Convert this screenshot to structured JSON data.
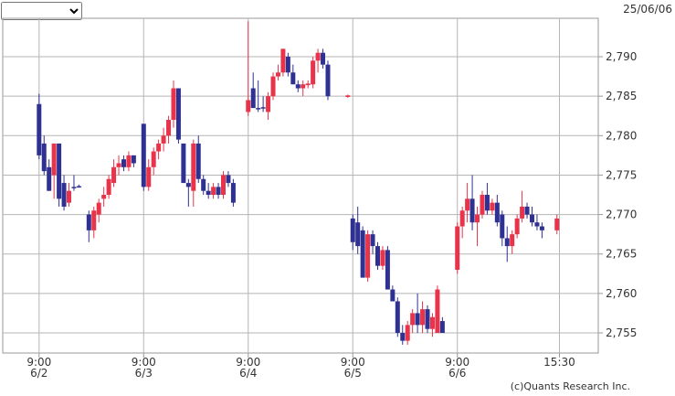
{
  "chart_data": {
    "type": "candlestick",
    "date": "25/06/06",
    "credit": "(c)Quants Research Inc.",
    "up_color": "#e8334a",
    "down_color": "#2e3192",
    "grid": true,
    "xlim": [
      -7.3,
      112.3
    ],
    "ylim": [
      2752.45,
      2794.87
    ],
    "xticks": [
      {
        "value": 0,
        "label": [
          "9:00",
          "6/2"
        ]
      },
      {
        "value": 21,
        "label": [
          "9:00",
          "6/3"
        ]
      },
      {
        "value": 42,
        "label": [
          "9:00",
          "6/4"
        ]
      },
      {
        "value": 63,
        "label": [
          "9:00",
          "6/5"
        ]
      },
      {
        "value": 84,
        "label": [
          "9:00",
          "6/6"
        ]
      },
      {
        "value": 104.5,
        "label": [
          "15:30"
        ]
      }
    ],
    "yticks": [
      {
        "value": 2755,
        "label": "2,755"
      },
      {
        "value": 2760,
        "label": "2,760"
      },
      {
        "value": 2765,
        "label": "2,765"
      },
      {
        "value": 2770,
        "label": "2,770"
      },
      {
        "value": 2775,
        "label": "2,775"
      },
      {
        "value": 2780,
        "label": "2,780"
      },
      {
        "value": 2785,
        "label": "2,785"
      },
      {
        "value": 2790,
        "label": "2,790"
      }
    ],
    "x": [
      0,
      1,
      2,
      3,
      4,
      5,
      6,
      7,
      8,
      10,
      11,
      12,
      13,
      14,
      15,
      16,
      17,
      18,
      19,
      21,
      22,
      23,
      24,
      25,
      26,
      27,
      28,
      29,
      30,
      31,
      32,
      33,
      34,
      35,
      36,
      37,
      38,
      39,
      42,
      43,
      44,
      45,
      46,
      47,
      48,
      49,
      50,
      51,
      52,
      53,
      54,
      55,
      56,
      57,
      58,
      62,
      63,
      64,
      65,
      66,
      67,
      68,
      69,
      70,
      71,
      72,
      73,
      74,
      75,
      76,
      77,
      78,
      79,
      80,
      81,
      84,
      85,
      86,
      87,
      88,
      89,
      90,
      91,
      92,
      93,
      94,
      95,
      96,
      97,
      98,
      99,
      100,
      101,
      104
    ],
    "open": [
      2784,
      2779,
      2776,
      2775,
      2779,
      2774,
      2771.5,
      2773.5,
      2773.6,
      2770,
      2768,
      2770,
      2772,
      2772.5,
      2774,
      2776,
      2777,
      2776,
      2777.5,
      2781.5,
      2773.5,
      2776,
      2778,
      2779,
      2780,
      2782,
      2786,
      2779,
      2774,
      2773,
      2779,
      2774.5,
      2773,
      2772.5,
      2773.5,
      2772.5,
      2775,
      2774,
      2783,
      2786,
      2783.5,
      2783.6,
      2783,
      2785,
      2787.5,
      2788,
      2790,
      2788,
      2786.5,
      2786,
      2786.4,
      2786.5,
      2789.5,
      2790.5,
      2789,
      2784.9,
      2769.5,
      2769,
      2768,
      2762,
      2767.5,
      2766,
      2763.5,
      2765.5,
      2760.5,
      2759,
      2755,
      2754,
      2756,
      2757.5,
      2756,
      2758,
      2755.5,
      2755,
      2756.5,
      2763,
      2768.5,
      2770.5,
      2772,
      2769,
      2770,
      2772.5,
      2770.5,
      2771.5,
      2770,
      2767,
      2766,
      2767.5,
      2769.5,
      2771,
      2770,
      2769,
      2768.5,
      2768
    ],
    "high": [
      2785.3,
      2780,
      2777,
      2779,
      2779,
      2775,
      2774,
      2775,
      2773.8,
      2770.5,
      2771,
      2772,
      2773.5,
      2775,
      2777,
      2777.5,
      2777.5,
      2778,
      2777.5,
      2781.5,
      2777,
      2778.5,
      2779.5,
      2781,
      2782.5,
      2787,
      2786,
      2779,
      2774.5,
      2779.5,
      2780,
      2775,
      2774,
      2774,
      2774,
      2775.5,
      2775.5,
      2774.5,
      2794.5,
      2788,
      2787,
      2785,
      2785.5,
      2788,
      2789,
      2791,
      2790.5,
      2789,
      2787,
      2787,
      2787,
      2790,
      2791,
      2791,
      2789.5,
      2785.2,
      2770,
      2771,
      2768.5,
      2768,
      2768,
      2766.5,
      2766,
      2766,
      2761,
      2759.5,
      2756,
      2756.5,
      2758,
      2760,
      2759,
      2758.5,
      2757.5,
      2761,
      2757,
      2769,
      2771,
      2774,
      2775,
      2771,
      2773,
      2774,
      2772,
      2772.5,
      2770.5,
      2768.5,
      2768,
      2770,
      2773,
      2771.5,
      2771,
      2770,
      2769,
      2770
    ],
    "low": [
      2777,
      2775,
      2773,
      2772,
      2771,
      2770.5,
      2771,
      2773,
      2773.4,
      2766.5,
      2767,
      2769,
      2771,
      2772,
      2773.5,
      2775,
      2775.5,
      2775.5,
      2776,
      2773,
      2773,
      2775,
      2777,
      2778,
      2779,
      2781,
      2779,
      2774,
      2771,
      2771,
      2774,
      2772.5,
      2772,
      2772,
      2772,
      2772,
      2773.5,
      2771,
      2782.5,
      2783.5,
      2783,
      2783,
      2782,
      2784.5,
      2787,
      2787.5,
      2787.5,
      2786.5,
      2785.5,
      2785,
      2786,
      2786,
      2788,
      2788.5,
      2784.5,
      2784.8,
      2765.5,
      2765,
      2762,
      2761.5,
      2765,
      2763,
      2763,
      2760.5,
      2759,
      2754.5,
      2753.5,
      2753.5,
      2755,
      2755,
      2755,
      2755,
      2754.5,
      2755,
      2755,
      2762.5,
      2767,
      2769,
      2768,
      2766,
      2769.5,
      2770,
      2770,
      2768.5,
      2766,
      2764,
      2765,
      2767,
      2769,
      2769.5,
      2768.5,
      2768,
      2767,
      2767.5
    ],
    "close": [
      2777.5,
      2775.5,
      2773,
      2779,
      2772,
      2771,
      2773,
      2773.5,
      2773.5,
      2768,
      2770.5,
      2771.5,
      2772.5,
      2774.5,
      2776,
      2776.5,
      2776,
      2777.5,
      2776.5,
      2773.5,
      2776,
      2778,
      2779,
      2780,
      2782,
      2786,
      2779.5,
      2774,
      2773.5,
      2779,
      2774.5,
      2773,
      2772.5,
      2773.5,
      2772.5,
      2775,
      2774,
      2771.5,
      2784.5,
      2783.5,
      2783.5,
      2783.5,
      2785,
      2787.5,
      2788,
      2791,
      2788,
      2786.5,
      2786,
      2786.5,
      2786.6,
      2789.5,
      2790.5,
      2789,
      2785,
      2785.1,
      2766.5,
      2766,
      2762,
      2767.5,
      2766,
      2763.5,
      2765.5,
      2760.5,
      2759,
      2755,
      2754,
      2756,
      2757.5,
      2756,
      2758,
      2755.5,
      2757,
      2760.5,
      2755,
      2768.5,
      2770.5,
      2772,
      2769,
      2770,
      2772.5,
      2770.5,
      2771.5,
      2769,
      2767,
      2766,
      2767.5,
      2769.5,
      2771,
      2770,
      2769,
      2768.5,
      2768,
      2769.5
    ]
  }
}
